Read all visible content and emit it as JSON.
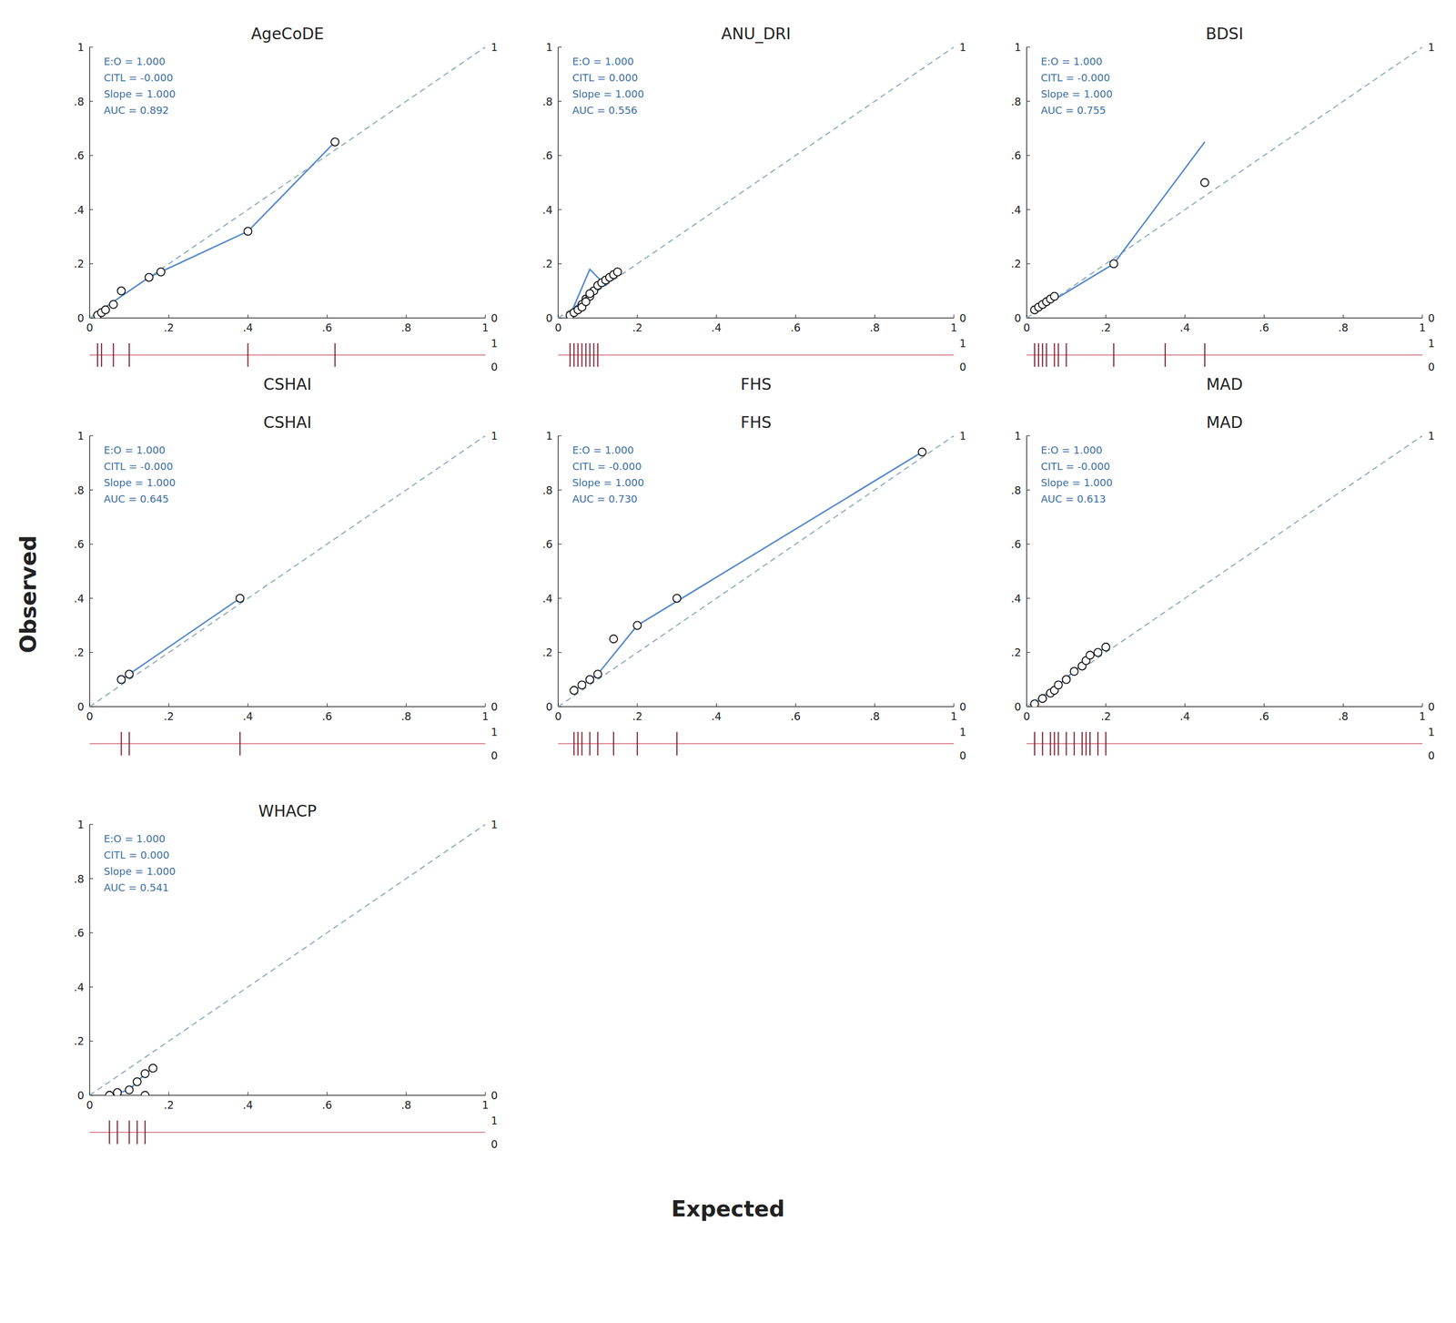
{
  "chart_data": {
    "type": "calibration",
    "x_label": "Expected",
    "y_label": "Observed",
    "xlim": [
      0,
      1
    ],
    "ylim": [
      0,
      1
    ],
    "xticks": [
      0,
      {
        "value": 0.2,
        "label": ".2"
      },
      {
        "value": 0.4,
        "label": ".4"
      },
      {
        "value": 0.6,
        "label": ".6"
      },
      {
        "value": 0.8,
        "label": ".8"
      },
      1
    ],
    "yticks": [
      0,
      {
        "value": 0.2,
        "label": ".2"
      },
      {
        "value": 0.4,
        "label": ".4"
      },
      {
        "value": 0.6,
        "label": ".6"
      },
      {
        "value": 0.8,
        "label": ".8"
      },
      1
    ],
    "side_labels": [
      "1",
      "0"
    ],
    "panels": [
      {
        "title": "AgeCoDE",
        "annotation": "E:O = 1.000\nCITL = -0.000\nSlope = 1.000\nAUC = 0.892",
        "x_label": "CSHAI",
        "series": [
          {
            "type": "line",
            "line_style": "dashed",
            "color": "#8BAABB",
            "x": [
              0,
              1
            ],
            "values": [
              0,
              1
            ]
          },
          {
            "type": "line",
            "line_style": "solid",
            "color": "#5588CC",
            "x": [
              0.01,
              0.06,
              0.15,
              0.4,
              0.62
            ],
            "values": [
              0.01,
              0.06,
              0.15,
              0.32,
              0.65
            ]
          },
          {
            "type": "scatter",
            "marker": "circle",
            "color": "white",
            "x": [
              0.02,
              0.03,
              0.04,
              0.06,
              0.08,
              0.15,
              0.18,
              0.4,
              0.62
            ],
            "values": [
              0.01,
              0.02,
              0.03,
              0.05,
              0.1,
              0.15,
              0.17,
              0.32,
              0.65
            ]
          },
          {
            "type": "rug",
            "color": "#7B2030",
            "x": [
              0.02,
              0.03,
              0.06,
              0.1,
              0.4,
              0.62
            ]
          }
        ]
      },
      {
        "title": "ANU_DRI",
        "annotation": "E:O = 1.000\nCITL = 0.000\nSlope = 1.000\nAUC = 0.556",
        "x_label": "FHS",
        "series": [
          {
            "type": "line",
            "line_style": "dashed",
            "color": "#8BAABB",
            "x": [
              0,
              1
            ],
            "values": [
              0,
              1
            ]
          },
          {
            "type": "line",
            "line_style": "solid",
            "color": "#5588CC",
            "x": [
              0.03,
              0.08,
              0.12,
              0.15
            ],
            "values": [
              0.01,
              0.18,
              0.12,
              0.17
            ]
          },
          {
            "type": "scatter",
            "marker": "circle",
            "color": "white",
            "x": [
              0.03,
              0.04,
              0.05,
              0.06,
              0.07,
              0.08,
              0.09,
              0.1,
              0.11,
              0.12,
              0.13,
              0.14,
              0.15,
              0.06,
              0.07,
              0.08
            ],
            "values": [
              0.01,
              0.02,
              0.03,
              0.05,
              0.07,
              0.08,
              0.1,
              0.12,
              0.13,
              0.14,
              0.15,
              0.16,
              0.17,
              0.04,
              0.06,
              0.09
            ]
          },
          {
            "type": "rug",
            "color": "#7B2030",
            "x": [
              0.03,
              0.04,
              0.05,
              0.06,
              0.07,
              0.08,
              0.09,
              0.1
            ]
          }
        ]
      },
      {
        "title": "BDSI",
        "annotation": "E:O = 1.000\nCITL = -0.000\nSlope = 1.000\nAUC = 0.755",
        "x_label": "MAD",
        "series": [
          {
            "type": "line",
            "line_style": "dashed",
            "color": "#8BAABB",
            "x": [
              0,
              1
            ],
            "values": [
              0,
              1
            ]
          },
          {
            "type": "line",
            "line_style": "solid",
            "color": "#5588CC",
            "x": [
              0.02,
              0.05,
              0.22,
              0.45
            ],
            "values": [
              0.02,
              0.05,
              0.2,
              0.65
            ]
          },
          {
            "type": "scatter",
            "marker": "circle",
            "color": "white",
            "x": [
              0.02,
              0.03,
              0.04,
              0.05,
              0.06,
              0.07,
              0.22,
              0.45
            ],
            "values": [
              0.03,
              0.04,
              0.05,
              0.06,
              0.07,
              0.08,
              0.2,
              0.5
            ]
          },
          {
            "type": "rug",
            "color": "#7B2030",
            "x": [
              0.02,
              0.03,
              0.04,
              0.05,
              0.07,
              0.08,
              0.1,
              0.22,
              0.35,
              0.45
            ]
          }
        ]
      },
      {
        "title": "CSHAI",
        "annotation": "E:O = 1.000\nCITL = -0.000\nSlope = 1.000\nAUC = 0.645",
        "series": [
          {
            "type": "line",
            "line_style": "dashed",
            "color": "#8BAABB",
            "x": [
              0,
              1
            ],
            "values": [
              0,
              1
            ]
          },
          {
            "type": "line",
            "line_style": "solid",
            "color": "#5588CC",
            "x": [
              0.08,
              0.1,
              0.38
            ],
            "values": [
              0.1,
              0.12,
              0.4
            ]
          },
          {
            "type": "scatter",
            "marker": "circle",
            "color": "white",
            "x": [
              0.08,
              0.1,
              0.38
            ],
            "values": [
              0.1,
              0.12,
              0.4
            ]
          },
          {
            "type": "rug",
            "color": "#7B2030",
            "x": [
              0.08,
              0.1,
              0.38
            ]
          }
        ]
      },
      {
        "title": "FHS",
        "annotation": "E:O = 1.000\nCITL = -0.000\nSlope = 1.000\nAUC = 0.730",
        "series": [
          {
            "type": "line",
            "line_style": "dashed",
            "color": "#8BAABB",
            "x": [
              0,
              1
            ],
            "values": [
              0,
              1
            ]
          },
          {
            "type": "line",
            "line_style": "solid",
            "color": "#5588CC",
            "x": [
              0.04,
              0.1,
              0.2,
              0.92
            ],
            "values": [
              0.06,
              0.12,
              0.3,
              0.94
            ]
          },
          {
            "type": "scatter",
            "marker": "circle",
            "color": "white",
            "x": [
              0.04,
              0.06,
              0.08,
              0.1,
              0.14,
              0.2,
              0.3,
              0.92
            ],
            "values": [
              0.06,
              0.08,
              0.1,
              0.12,
              0.25,
              0.3,
              0.4,
              0.94
            ]
          },
          {
            "type": "rug",
            "color": "#7B2030",
            "x": [
              0.04,
              0.05,
              0.06,
              0.08,
              0.1,
              0.14,
              0.2,
              0.3
            ]
          }
        ]
      },
      {
        "title": "MAD",
        "annotation": "E:O = 1.000\nCITL = -0.000\nSlope = 1.000\nAUC = 0.613",
        "series": [
          {
            "type": "line",
            "line_style": "dashed",
            "color": "#8BAABB",
            "x": [
              0,
              1
            ],
            "values": [
              0,
              1
            ]
          },
          {
            "type": "line",
            "line_style": "solid",
            "color": "#5588CC",
            "x": [
              0.02,
              0.08,
              0.15,
              0.2
            ],
            "values": [
              0.01,
              0.08,
              0.17,
              0.22
            ]
          },
          {
            "type": "scatter",
            "marker": "circle",
            "color": "white",
            "x": [
              0.02,
              0.04,
              0.06,
              0.07,
              0.08,
              0.1,
              0.12,
              0.14,
              0.15,
              0.16,
              0.18,
              0.2
            ],
            "values": [
              0.01,
              0.03,
              0.05,
              0.06,
              0.08,
              0.1,
              0.13,
              0.15,
              0.17,
              0.19,
              0.2,
              0.22
            ]
          },
          {
            "type": "rug",
            "color": "#7B2030",
            "x": [
              0.02,
              0.04,
              0.06,
              0.07,
              0.08,
              0.1,
              0.12,
              0.14,
              0.15,
              0.16,
              0.18,
              0.2
            ]
          }
        ]
      },
      {
        "title": "WHACP",
        "annotation": "E:O = 1.000\nCITL = 0.000\nSlope = 1.000\nAUC = 0.541",
        "series": [
          {
            "type": "line",
            "line_style": "dashed",
            "color": "#8BAABB",
            "x": [
              0,
              1
            ],
            "values": [
              0,
              1
            ]
          },
          {
            "type": "line",
            "line_style": "solid",
            "color": "#5588CC",
            "x": [
              0.05,
              0.1,
              0.14,
              0.16
            ],
            "values": [
              0.0,
              0.02,
              0.08,
              0.1
            ]
          },
          {
            "type": "scatter",
            "marker": "circle",
            "color": "white",
            "x": [
              0.05,
              0.07,
              0.1,
              0.12,
              0.14,
              0.16,
              0.14
            ],
            "values": [
              0.0,
              0.01,
              0.02,
              0.05,
              0.08,
              0.1,
              0.0
            ]
          },
          {
            "type": "rug",
            "color": "#7B2030",
            "x": [
              0.05,
              0.07,
              0.1,
              0.12,
              0.14
            ]
          }
        ]
      }
    ]
  }
}
